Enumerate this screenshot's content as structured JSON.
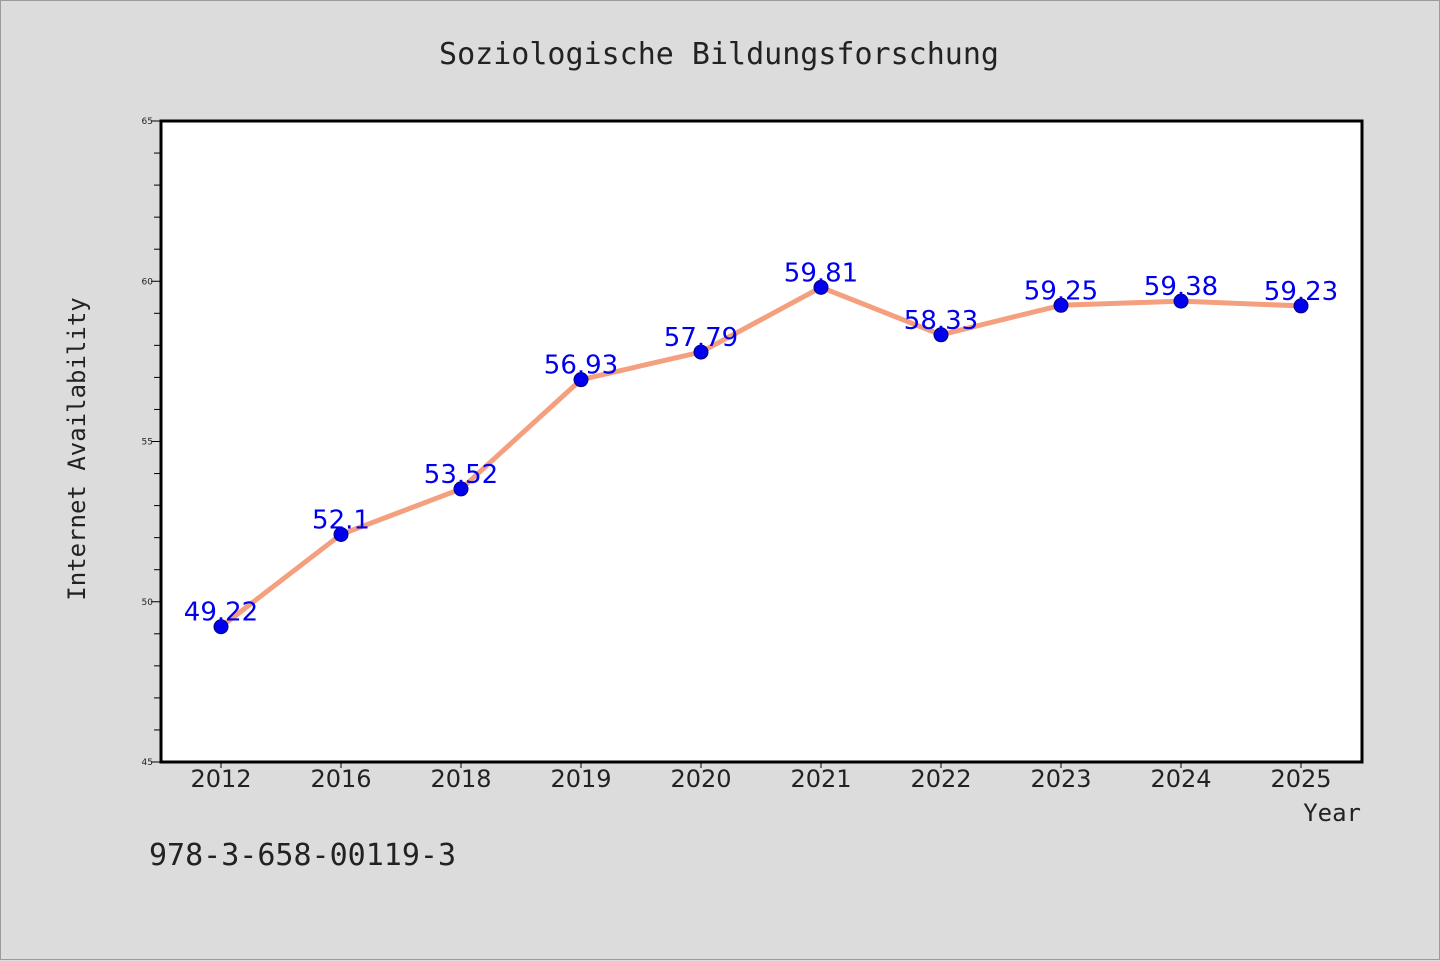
{
  "chart_data": {
    "type": "line",
    "title": "Soziologische Bildungsforschung",
    "xlabel": "Year",
    "ylabel": "Internet Availability",
    "categories": [
      "2012",
      "2016",
      "2018",
      "2019",
      "2020",
      "2021",
      "2022",
      "2023",
      "2024",
      "2025"
    ],
    "values": [
      49.22,
      52.1,
      53.52,
      56.93,
      57.79,
      59.81,
      58.33,
      59.25,
      59.38,
      59.23
    ],
    "data_labels": [
      "49.22",
      "52.1",
      "53.52",
      "56.93",
      "57.79",
      "59.81",
      "58.33",
      "59.25",
      "59.38",
      "59.23"
    ],
    "ylim": [
      45,
      65
    ],
    "yticks": [
      45,
      50,
      55,
      60,
      65
    ],
    "yminor_step": 1,
    "grid": false,
    "line_color": "#f4a07e",
    "marker_color": "#0000ee",
    "label_color": "#0000ee"
  },
  "footer": {
    "isbn": "978-3-658-00119-3"
  }
}
